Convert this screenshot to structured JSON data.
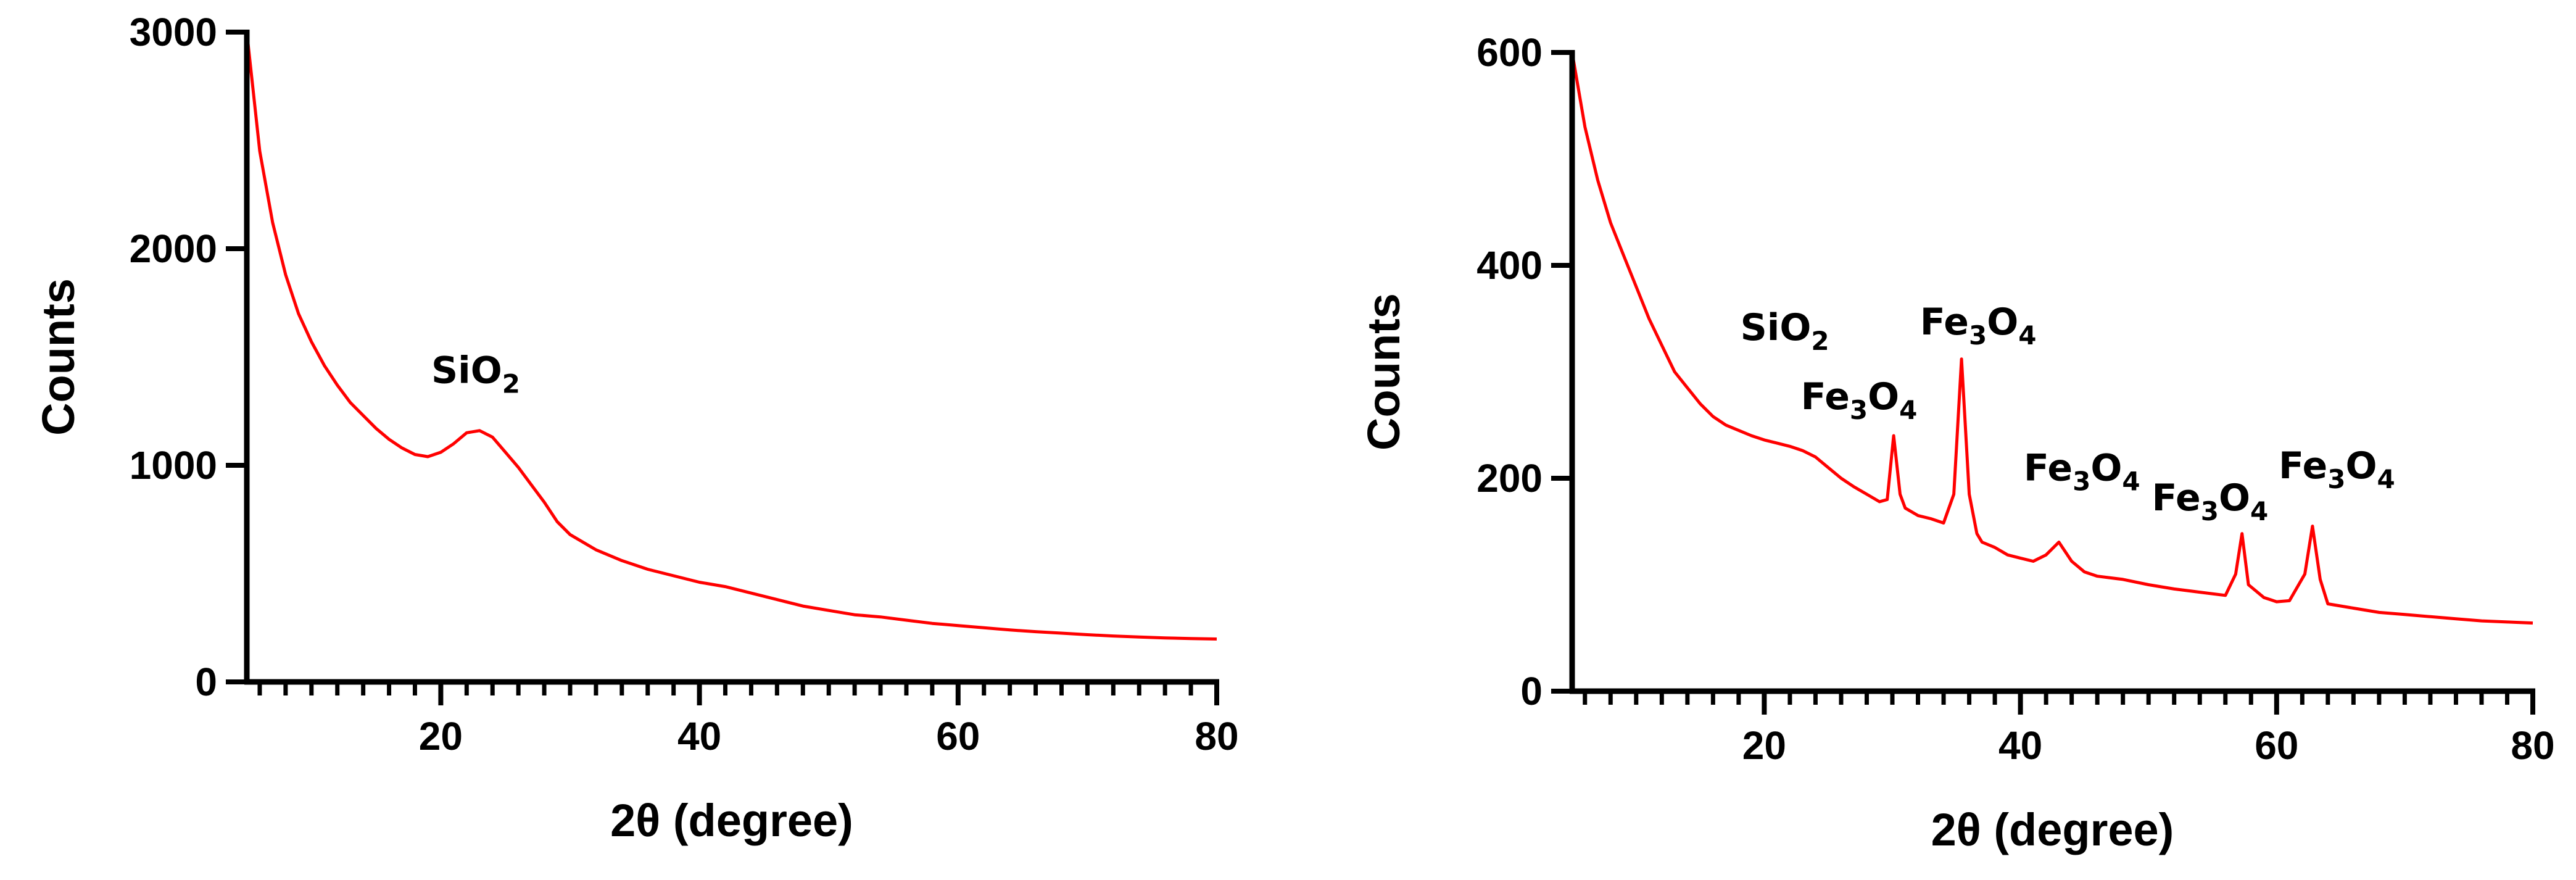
{
  "chart_data": [
    {
      "type": "line",
      "xlabel": "2θ (degree)",
      "ylabel": "Counts",
      "xlim": [
        5,
        80
      ],
      "ylim": [
        0,
        3000
      ],
      "x_ticks": [
        "20",
        "40",
        "60",
        "80"
      ],
      "y_ticks": [
        "0",
        "1000",
        "2000",
        "3000"
      ],
      "grid": false,
      "color": "#ff0000",
      "series": [
        {
          "x": [
            5,
            6,
            7,
            8,
            9,
            10,
            11,
            12,
            13,
            14,
            15,
            16,
            17,
            18,
            19,
            20,
            21,
            22,
            23,
            24,
            25,
            26,
            27,
            28,
            29,
            30,
            32,
            34,
            36,
            38,
            40,
            42,
            44,
            46,
            48,
            50,
            52,
            54,
            56,
            58,
            60,
            62,
            64,
            66,
            68,
            70,
            72,
            74,
            76,
            78,
            80
          ],
          "y": [
            3000,
            2450,
            2120,
            1880,
            1700,
            1570,
            1460,
            1370,
            1290,
            1230,
            1170,
            1120,
            1080,
            1050,
            1040,
            1060,
            1100,
            1150,
            1160,
            1130,
            1060,
            990,
            910,
            830,
            740,
            680,
            610,
            560,
            520,
            490,
            460,
            440,
            410,
            380,
            350,
            330,
            310,
            300,
            285,
            270,
            260,
            250,
            240,
            232,
            225,
            218,
            212,
            207,
            203,
            200,
            198
          ]
        }
      ],
      "annotations": [
        {
          "sub": "SiO",
          "subscript": "2",
          "x": 22.7,
          "y": 1380
        }
      ]
    },
    {
      "type": "line",
      "xlabel": "2θ (degree)",
      "ylabel": "Counts",
      "xlim": [
        5,
        80
      ],
      "ylim": [
        0,
        600
      ],
      "x_ticks": [
        "20",
        "40",
        "60",
        "80"
      ],
      "y_ticks": [
        "0",
        "200",
        "400",
        "600"
      ],
      "grid": false,
      "color": "#ff0000",
      "series": [
        {
          "x": [
            5,
            6,
            7,
            8,
            9,
            10,
            11,
            12,
            13,
            14,
            15,
            16,
            17,
            18,
            19,
            20,
            21,
            22,
            23,
            24,
            25,
            26,
            27,
            28,
            29,
            29.6,
            30.1,
            30.6,
            31,
            32,
            33,
            34,
            34.8,
            35.4,
            36,
            36.6,
            37,
            38,
            39,
            40,
            41,
            42,
            43,
            44,
            45,
            46,
            48,
            50,
            52,
            54,
            56,
            56.8,
            57.3,
            57.8,
            59,
            60,
            61,
            62.2,
            62.8,
            63.4,
            64,
            66,
            68,
            70,
            72,
            74,
            76,
            78,
            80
          ],
          "y": [
            600,
            530,
            480,
            440,
            410,
            380,
            350,
            325,
            300,
            285,
            270,
            258,
            250,
            245,
            240,
            236,
            233,
            230,
            226,
            220,
            210,
            200,
            192,
            185,
            178,
            180,
            240,
            185,
            172,
            165,
            162,
            158,
            185,
            312,
            185,
            148,
            140,
            135,
            128,
            125,
            122,
            128,
            140,
            122,
            112,
            108,
            105,
            100,
            96,
            93,
            90,
            110,
            148,
            100,
            88,
            84,
            85,
            110,
            155,
            105,
            82,
            78,
            74,
            72,
            70,
            68,
            66,
            65,
            64
          ]
        }
      ],
      "annotations": [
        {
          "sub": "SiO",
          "subscript": "2",
          "x": 21.6,
          "y": 330
        },
        {
          "sub": "Fe",
          "subscript": "3",
          "tail": "O",
          "tail_sub": "4",
          "x": 36.7,
          "y": 335
        },
        {
          "sub": "Fe",
          "subscript": "3",
          "tail": "O",
          "tail_sub": "4",
          "x": 27.4,
          "y": 265
        },
        {
          "sub": "Fe",
          "subscript": "3",
          "tail": "O",
          "tail_sub": "4",
          "x": 44.8,
          "y": 198
        },
        {
          "sub": "Fe",
          "subscript": "3",
          "tail": "O",
          "tail_sub": "4",
          "x": 54.8,
          "y": 170
        },
        {
          "sub": "Fe",
          "subscript": "3",
          "tail": "O",
          "tail_sub": "4",
          "x": 64.7,
          "y": 200
        }
      ]
    }
  ]
}
